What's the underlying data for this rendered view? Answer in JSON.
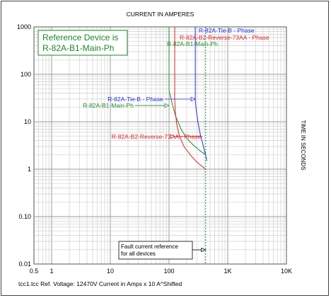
{
  "chart_data": {
    "type": "line",
    "title": "CURRENT IN AMPERES",
    "xlabel": "",
    "ylabel": "TIME IN SECONDS",
    "xscale": "log",
    "yscale": "log",
    "xlim": [
      0.5,
      10000
    ],
    "ylim": [
      0.01,
      1000
    ],
    "grid": true,
    "x_ticks": [
      {
        "value": 0.5,
        "label": "0.5"
      },
      {
        "value": 1,
        "label": "1"
      },
      {
        "value": 10,
        "label": "10"
      },
      {
        "value": 100,
        "label": "100"
      },
      {
        "value": 1000,
        "label": "1K"
      },
      {
        "value": 10000,
        "label": "10K"
      }
    ],
    "y_ticks": [
      {
        "value": 0.01,
        "label": "0.01"
      },
      {
        "value": 0.1,
        "label": "0.10"
      },
      {
        "value": 1,
        "label": "1"
      },
      {
        "value": 10,
        "label": "10"
      },
      {
        "value": 100,
        "label": "100"
      },
      {
        "value": 1000,
        "label": "1000"
      }
    ],
    "reference_box": {
      "line1": "Reference Device is",
      "line2": "R-82A-B1-Main-Ph",
      "color": "#1a8a2a"
    },
    "series": [
      {
        "name": "R-82A-Tie-B - Phase",
        "top_label": "R-82A-Tie-B - Phase",
        "color": "#1f2fe0",
        "x": [
          280,
          280,
          290,
          310,
          340,
          380,
          420,
          440
        ],
        "y": [
          1000,
          28,
          18,
          10,
          5.5,
          3.2,
          2.0,
          1.5
        ],
        "label_at": [
          9,
          30
        ]
      },
      {
        "name": "R-82A-B1-Main-Ph",
        "top_label": "R-82A-B1-Main-Ph",
        "color": "#1a8a2a",
        "x": [
          100,
          100,
          105,
          115,
          130,
          160,
          200,
          260,
          330,
          420
        ],
        "y": [
          1000,
          45,
          36,
          22,
          13,
          7,
          4.5,
          3.2,
          2.5,
          2.0
        ],
        "label_at": [
          3.4,
          22
        ]
      },
      {
        "name": "R-82A-B2-Reverse-73AA - Phase",
        "top_label": "R-82A-B2-Reverse-73AA - Phase",
        "color": "#e02020",
        "x": [
          125,
          125,
          128,
          135,
          150,
          180,
          230,
          300,
          420
        ],
        "y": [
          1000,
          28,
          16,
          9,
          5,
          3,
          2,
          1.4,
          1.0
        ],
        "label_at": [
          10.5,
          4.9
        ]
      }
    ],
    "fault_marker": {
      "x": 420,
      "line1": "Fault current reference",
      "line2": "for all devices",
      "color": "#1a8a5a"
    },
    "footer": "tcc1.tcc   Ref. Voltage: 12470V   Current in Amps x 10  A^Shifted"
  }
}
